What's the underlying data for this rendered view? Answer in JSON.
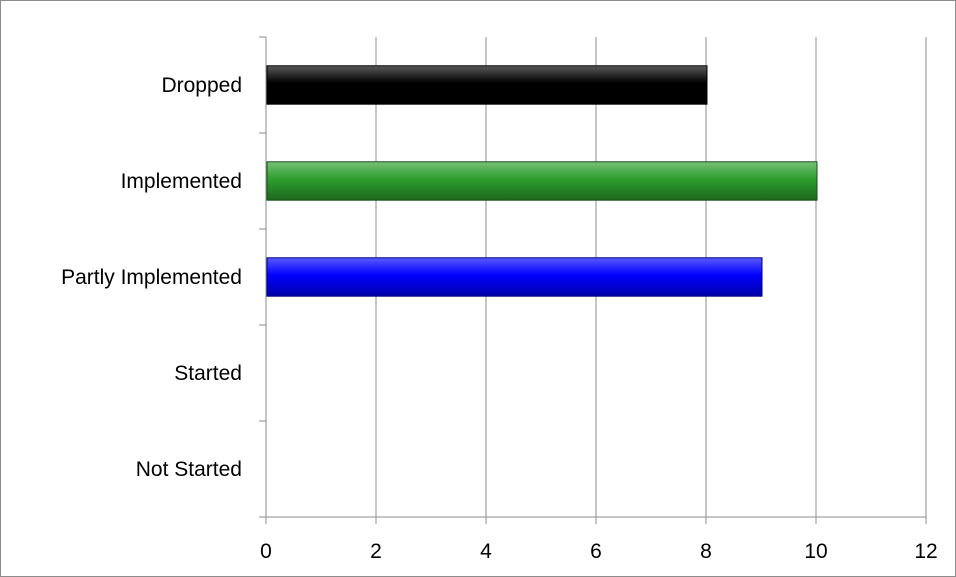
{
  "chart_data": {
    "type": "bar",
    "orientation": "horizontal",
    "categories": [
      "Dropped",
      "Implemented",
      "Partly Implemented",
      "Started",
      "Not Started"
    ],
    "values": [
      8,
      10,
      9,
      0,
      0
    ],
    "bar_colors": [
      "#000000",
      "#2e9e2e",
      "#0000ff",
      "#cccccc",
      "#cccccc"
    ],
    "title": "",
    "xlabel": "",
    "ylabel": "",
    "xlim": [
      0,
      12
    ],
    "x_ticks": [
      0,
      2,
      4,
      6,
      8,
      10,
      12
    ],
    "grid": "vertical",
    "legend": "none"
  }
}
